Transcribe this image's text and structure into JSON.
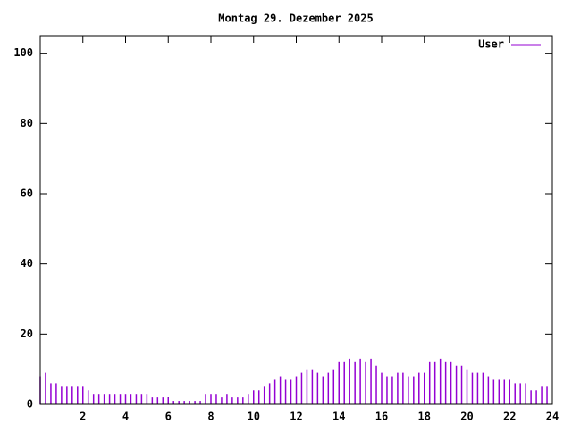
{
  "chart_data": {
    "type": "impulse",
    "title": "Montag 29. Dezember 2025",
    "x": [
      0,
      0.25,
      0.5,
      0.75,
      1,
      1.25,
      1.5,
      1.75,
      2,
      2.25,
      2.5,
      2.75,
      3,
      3.25,
      3.5,
      3.75,
      4,
      4.25,
      4.5,
      4.75,
      5,
      5.25,
      5.5,
      5.75,
      6,
      6.25,
      6.5,
      6.75,
      7,
      7.25,
      7.5,
      7.75,
      8,
      8.25,
      8.5,
      8.75,
      9,
      9.25,
      9.5,
      9.75,
      10,
      10.25,
      10.5,
      10.75,
      11,
      11.25,
      11.5,
      11.75,
      12,
      12.25,
      12.5,
      12.75,
      13,
      13.25,
      13.5,
      13.75,
      14,
      14.25,
      14.5,
      14.75,
      15,
      15.25,
      15.5,
      15.75,
      16,
      16.25,
      16.5,
      16.75,
      17,
      17.25,
      17.5,
      17.75,
      18,
      18.25,
      18.5,
      18.75,
      19,
      19.25,
      19.5,
      19.75,
      20,
      20.25,
      20.5,
      20.75,
      21,
      21.25,
      21.5,
      21.75,
      22,
      22.25,
      22.5,
      22.75,
      23,
      23.25,
      23.5,
      23.75
    ],
    "series": [
      {
        "name": "User",
        "color": "#9400d3",
        "values": [
          8,
          9,
          6,
          6,
          5,
          5,
          5,
          5,
          5,
          4,
          3,
          3,
          3,
          3,
          3,
          3,
          3,
          3,
          3,
          3,
          3,
          2,
          2,
          2,
          2,
          1,
          1,
          1,
          1,
          1,
          1,
          3,
          3,
          3,
          2,
          3,
          2,
          2,
          2,
          3,
          4,
          4,
          5,
          6,
          7,
          8,
          7,
          7,
          8,
          9,
          10,
          10,
          9,
          8,
          9,
          10,
          12,
          12,
          13,
          12,
          13,
          12,
          13,
          11,
          9,
          8,
          8,
          9,
          9,
          8,
          8,
          9,
          9,
          12,
          12,
          13,
          12,
          12,
          11,
          11,
          10,
          9,
          9,
          9,
          8,
          7,
          7,
          7,
          7,
          6,
          6,
          6,
          4,
          4,
          5,
          5
        ]
      }
    ],
    "xlim": [
      0,
      24
    ],
    "xticks": [
      2,
      4,
      6,
      8,
      10,
      12,
      14,
      16,
      18,
      20,
      22,
      24
    ],
    "ylim": [
      0,
      105
    ],
    "yticks": [
      0,
      20,
      40,
      60,
      80,
      100
    ],
    "legend": "top-right"
  }
}
